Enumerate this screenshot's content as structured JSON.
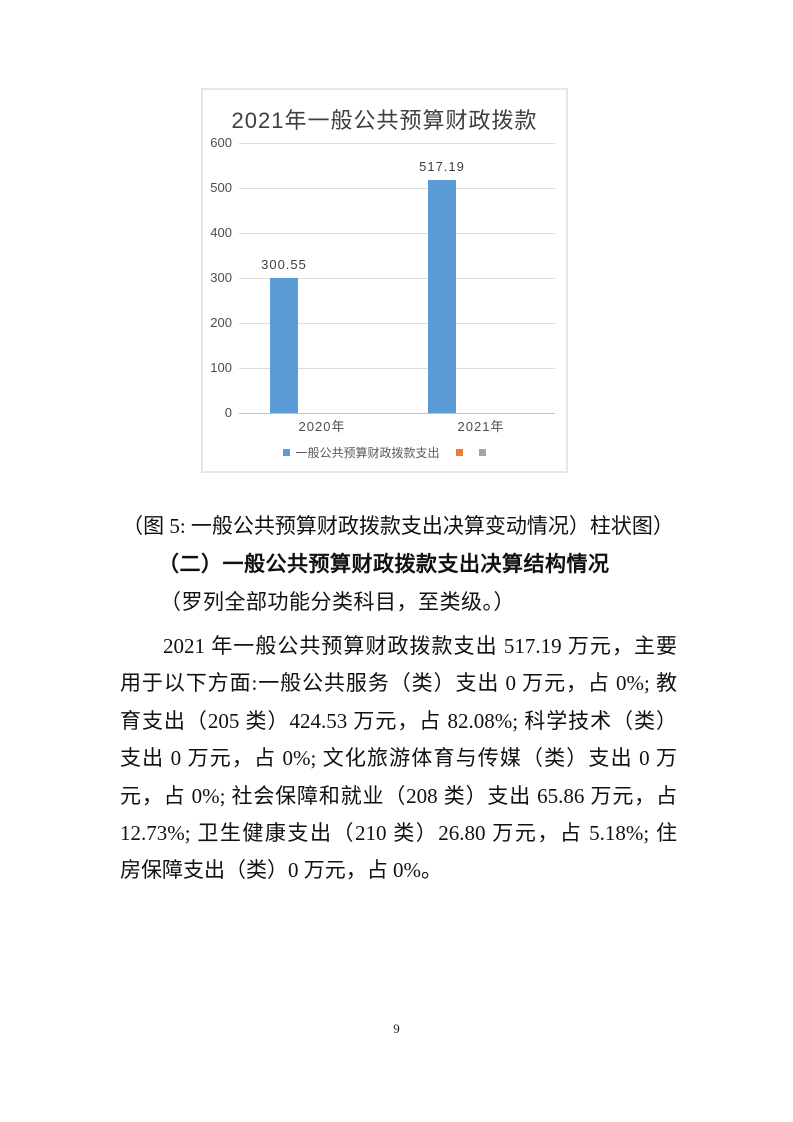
{
  "chart": {
    "title": "2021年一般公共预算财政拨款",
    "y_ticks": [
      "600",
      "500",
      "400",
      "300",
      "200",
      "100",
      "0"
    ],
    "legend": [
      {
        "label": "一般公共预算财政拨款支出",
        "color": "#5B9BD5"
      },
      {
        "label": "",
        "color": "#ED7D31"
      },
      {
        "label": "",
        "color": "#A5A5A5"
      }
    ]
  },
  "chart_data": {
    "type": "bar",
    "title": "2021年一般公共预算财政拨款",
    "categories": [
      "2020年",
      "2021年"
    ],
    "series": [
      {
        "name": "一般公共预算财政拨款支出",
        "values": [
          300.55,
          517.19
        ]
      }
    ],
    "value_labels": [
      "300.55",
      "517.19"
    ],
    "xlabel": "",
    "ylabel": "",
    "ylim": [
      0,
      600
    ],
    "y_tick_interval": 100,
    "grid": true,
    "legend_position": "bottom",
    "bar_color": "#5B9BD5",
    "extra_legend_colors": [
      "#ED7D31",
      "#A5A5A5"
    ]
  },
  "caption": "（图 5: 一般公共预算财政拨款支出决算变动情况）柱状图）",
  "heading": "（二）一般公共预算财政拨款支出决算结构情况",
  "subheading": "（罗列全部功能分类科目，至类级。）",
  "paragraph_lines": [
    "2021 年一般公共预算财政拨款支出 517.19 万元，主要",
    "用于以下方面:一般公共服务（类）支出 0 万元，占 0%; 教",
    "育支出（205 类）424.53 万元，占 82.08%; 科学技术（类）",
    "支出 0 万元，占 0%; 文化旅游体育与传媒（类）支出 0 万",
    "元，占 0%; 社会保障和就业（208 类）支出 65.86 万元，占",
    "12.73%; 卫生健康支出（210 类）26.80 万元，占 5.18%; 住",
    "房保障支出（类）0 万元，占 0%。"
  ],
  "page": {
    "number": "9"
  }
}
